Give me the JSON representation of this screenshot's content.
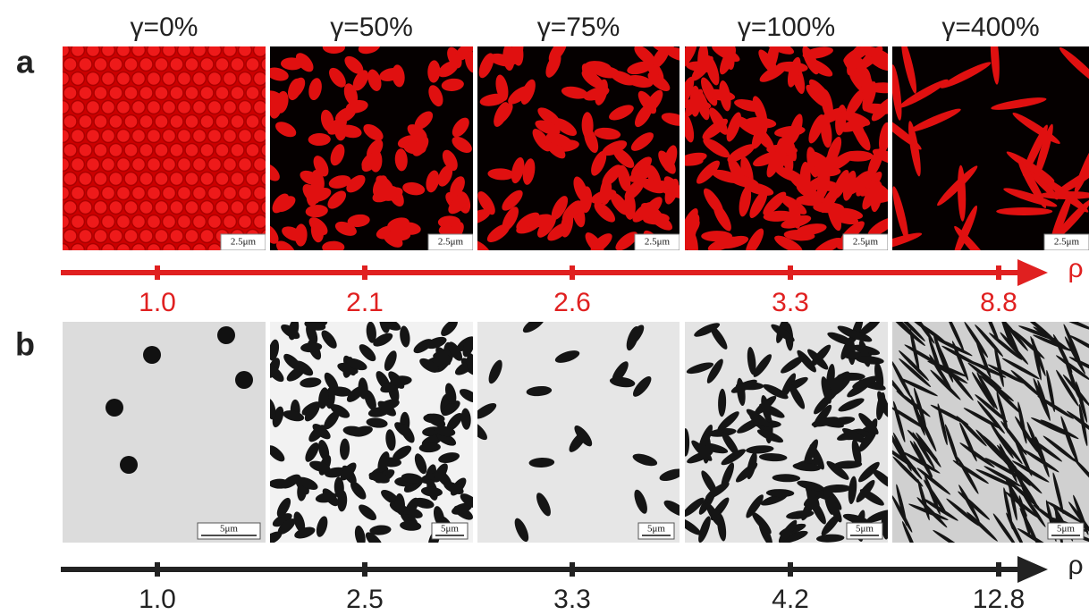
{
  "panel_a": {
    "label": "a",
    "strains": [
      "γ=0%",
      "γ=50%",
      "γ=75%",
      "γ=100%",
      "γ=400%"
    ],
    "scale_bars": [
      "2.5μm",
      "2.5μm",
      "2.5μm",
      "2.5μm",
      "2.5μm"
    ],
    "axis": {
      "symbol": "ρ",
      "ticks": [
        "1.0",
        "2.1",
        "2.6",
        "3.3",
        "8.8"
      ]
    }
  },
  "panel_b": {
    "label": "b",
    "scale_bars": [
      "5μm",
      "5μm",
      "5μm",
      "5μm",
      "5μm"
    ],
    "axis": {
      "symbol": "ρ",
      "ticks": [
        "1.0",
        "2.5",
        "3.3",
        "4.2",
        "12.8"
      ]
    }
  }
}
